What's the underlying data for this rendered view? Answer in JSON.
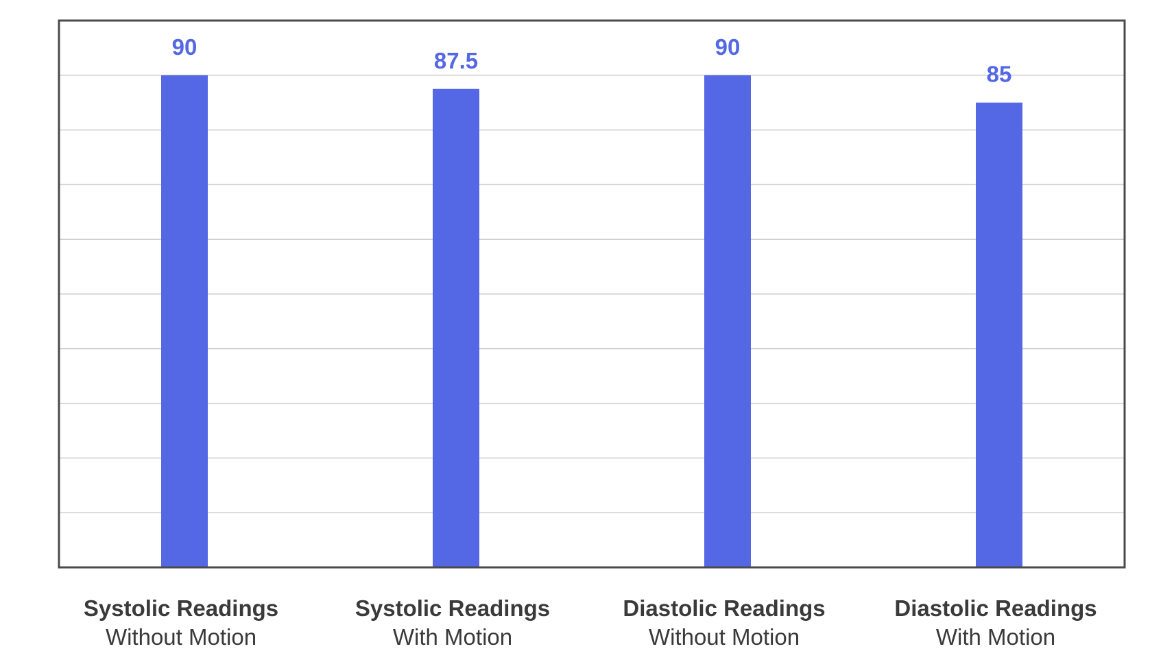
{
  "chart_data": {
    "type": "bar",
    "categories": [
      {
        "line1": "Systolic Readings",
        "line2": "Without Motion"
      },
      {
        "line1": "Systolic Readings",
        "line2": "With Motion"
      },
      {
        "line1": "Diastolic Readings",
        "line2": "Without Motion"
      },
      {
        "line1": "Diastolic Readings",
        "line2": "With Motion"
      }
    ],
    "values": [
      90,
      87.5,
      90,
      85
    ],
    "data_labels": [
      "90",
      "87.5",
      "90",
      "85"
    ],
    "title": "",
    "xlabel": "",
    "ylabel": "",
    "ylim": [
      0,
      100
    ],
    "grid": true,
    "bar_color": "#5468E5",
    "label_color": "#5468E5",
    "category_color": "#3A3A3A",
    "frame_color": "#4A4A4A",
    "grid_color": "#CFCFCF"
  }
}
